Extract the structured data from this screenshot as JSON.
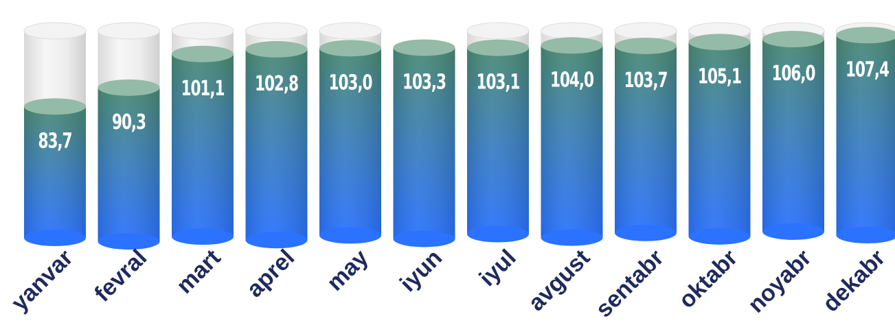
{
  "chart_data": {
    "type": "bar",
    "style": "cylinder",
    "categories": [
      "yanvar",
      "fevral",
      "mart",
      "aprel",
      "may",
      "iyun",
      "iyul",
      "avgust",
      "sentabr",
      "oktabr",
      "noyabr",
      "dekabr"
    ],
    "value_labels": [
      "83,7",
      "90,3",
      "101,1",
      "102,8",
      "103,0",
      "103,3",
      "103,1",
      "104,0",
      "103,7",
      "105,1",
      "106,0",
      "107,4"
    ],
    "values": [
      83.7,
      90.3,
      101.1,
      102.8,
      103.0,
      103.3,
      103.1,
      104.0,
      103.7,
      105.1,
      106.0,
      107.4
    ],
    "ylim": [
      40,
      110
    ],
    "grid": false,
    "legend": "none",
    "colors": {
      "fill_top": "#4a8a72",
      "fill_bottom": "#2a72ff",
      "cap": "#94baa8",
      "glass": "#e6e6e6",
      "label_text": "#ffffff",
      "category_text": "#1f2a5c"
    }
  }
}
